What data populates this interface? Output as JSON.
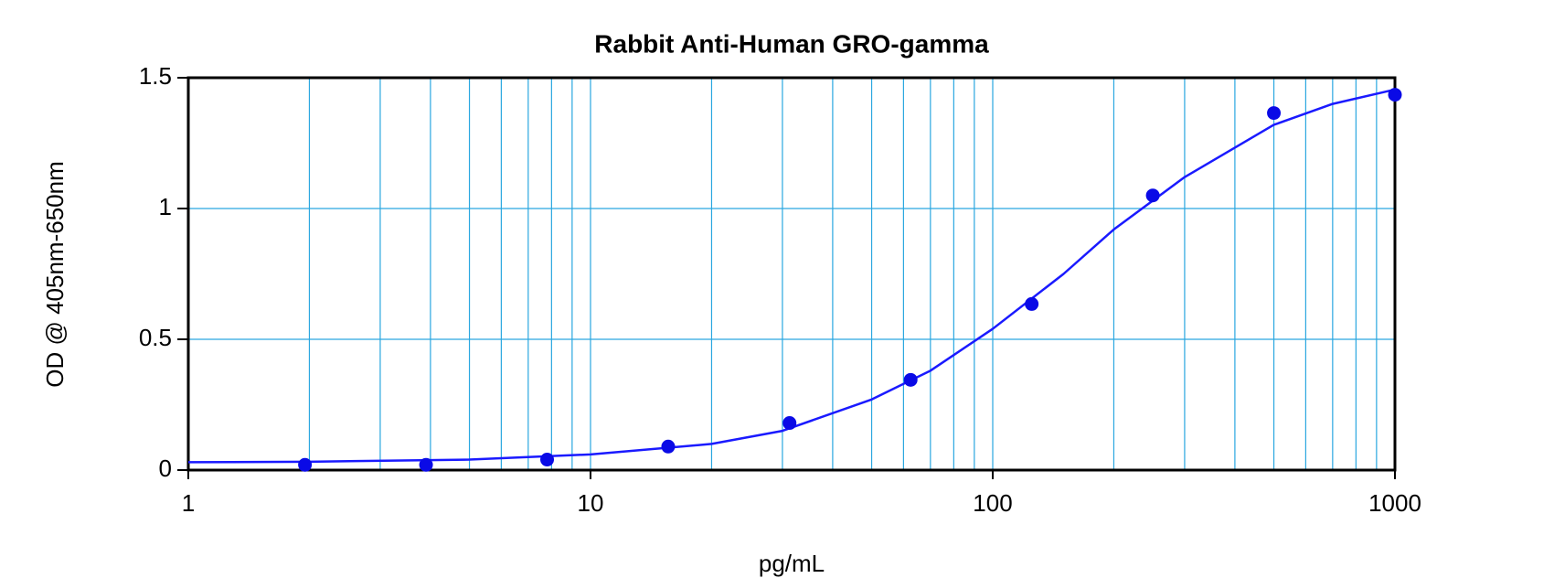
{
  "chart_data": {
    "type": "scatter",
    "title": "Rabbit Anti-Human GRO-gamma",
    "x_label": "pg/mL",
    "y_label": "OD @ 405nm-650nm",
    "xscale": "log",
    "xlim": [
      1,
      1000
    ],
    "ylim": [
      0,
      1.5
    ],
    "xticks": [
      1,
      10,
      100,
      1000
    ],
    "xminor": [
      2,
      3,
      4,
      5,
      6,
      7,
      8,
      9,
      20,
      30,
      40,
      50,
      60,
      70,
      80,
      90,
      200,
      300,
      400,
      500,
      600,
      700,
      800,
      900
    ],
    "yticks": [
      0,
      0.5,
      1,
      1.5
    ],
    "grid": true,
    "grid_color": "#2aa7e0",
    "series": [
      {
        "kind": "points",
        "color": "#0a0ae6",
        "x": [
          1.95,
          3.9,
          7.8,
          15.6,
          31.25,
          62.5,
          125,
          250,
          500,
          1000
        ],
        "values": [
          0.02,
          0.02,
          0.04,
          0.09,
          0.18,
          0.345,
          0.635,
          1.05,
          1.365,
          1.435
        ]
      },
      {
        "kind": "line",
        "color": "#1a1aff",
        "x": [
          1,
          2,
          5,
          10,
          20,
          30,
          50,
          70,
          100,
          150,
          200,
          300,
          500,
          700,
          1000
        ],
        "values": [
          0.03,
          0.032,
          0.04,
          0.06,
          0.1,
          0.15,
          0.27,
          0.38,
          0.54,
          0.75,
          0.92,
          1.12,
          1.32,
          1.4,
          1.455
        ]
      }
    ]
  }
}
